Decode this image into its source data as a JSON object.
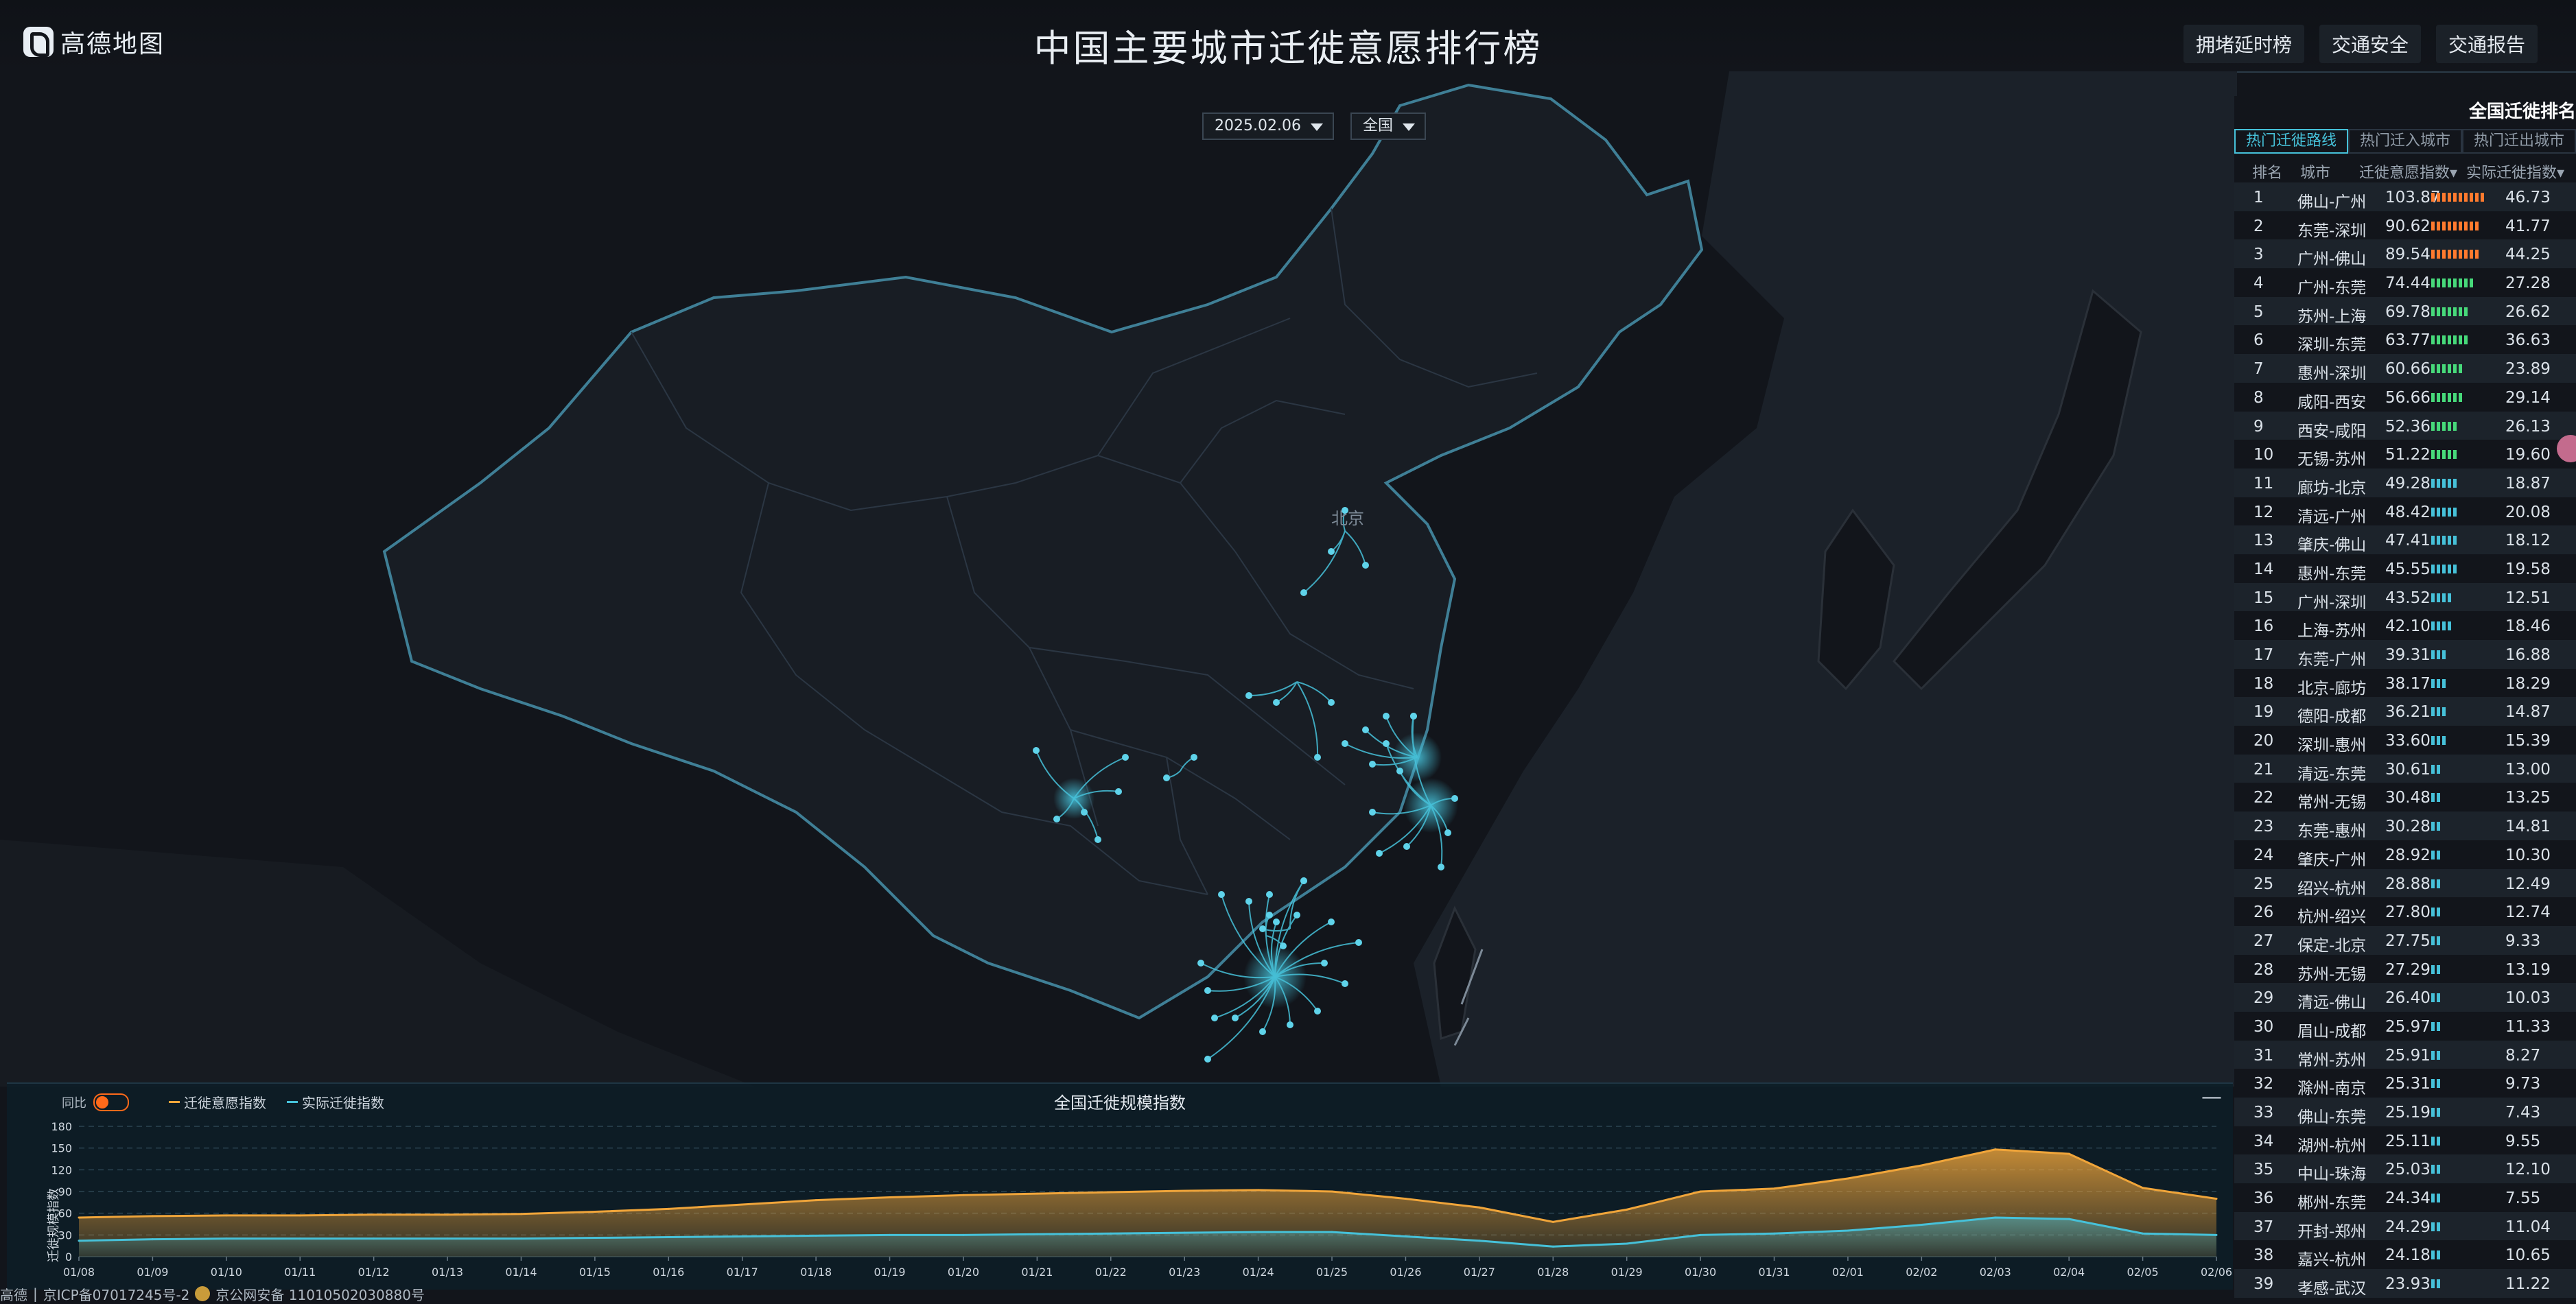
{
  "header": {
    "logo_text": "高德地图",
    "title": "中国主要城市迁徙意愿排行榜",
    "nav": [
      "拥堵延时榜",
      "交通安全",
      "交通报告"
    ]
  },
  "filters": {
    "date": "2025.02.06",
    "region": "全国"
  },
  "map": {
    "label_beijing": "北京"
  },
  "ranking": {
    "title": "全国迁徙排名",
    "tabs": [
      "热门迁徙路线",
      "热门迁入城市",
      "热门迁出城市"
    ],
    "active_tab": 0,
    "headers": {
      "rank": "排名",
      "city": "城市",
      "willingness": "迁徙意愿指数",
      "actual": "实际迁徙指数"
    },
    "rows": [
      {
        "rank": "1",
        "route": "佛山-广州",
        "willingness": "103.87",
        "actual": "46.73",
        "bars": 10,
        "color": "#ff7a2e"
      },
      {
        "rank": "2",
        "route": "东莞-深圳",
        "willingness": "90.62",
        "actual": "41.77",
        "bars": 9,
        "color": "#ff7a2e"
      },
      {
        "rank": "3",
        "route": "广州-佛山",
        "willingness": "89.54",
        "actual": "44.25",
        "bars": 9,
        "color": "#ff7a2e"
      },
      {
        "rank": "4",
        "route": "广州-东莞",
        "willingness": "74.44",
        "actual": "27.28",
        "bars": 8,
        "color": "#47d97a"
      },
      {
        "rank": "5",
        "route": "苏州-上海",
        "willingness": "69.78",
        "actual": "26.62",
        "bars": 7,
        "color": "#47d97a"
      },
      {
        "rank": "6",
        "route": "深圳-东莞",
        "willingness": "63.77",
        "actual": "36.63",
        "bars": 7,
        "color": "#47d97a"
      },
      {
        "rank": "7",
        "route": "惠州-深圳",
        "willingness": "60.66",
        "actual": "23.89",
        "bars": 6,
        "color": "#47d97a"
      },
      {
        "rank": "8",
        "route": "咸阳-西安",
        "willingness": "56.66",
        "actual": "29.14",
        "bars": 6,
        "color": "#47d97a"
      },
      {
        "rank": "9",
        "route": "西安-咸阳",
        "willingness": "52.36",
        "actual": "26.13",
        "bars": 5,
        "color": "#47d97a"
      },
      {
        "rank": "10",
        "route": "无锡-苏州",
        "willingness": "51.22",
        "actual": "19.60",
        "bars": 5,
        "color": "#47d97a"
      },
      {
        "rank": "11",
        "route": "廊坊-北京",
        "willingness": "49.28",
        "actual": "18.87",
        "bars": 5,
        "color": "#46c1d9"
      },
      {
        "rank": "12",
        "route": "清远-广州",
        "willingness": "48.42",
        "actual": "20.08",
        "bars": 5,
        "color": "#46c1d9"
      },
      {
        "rank": "13",
        "route": "肇庆-佛山",
        "willingness": "47.41",
        "actual": "18.12",
        "bars": 5,
        "color": "#46c1d9"
      },
      {
        "rank": "14",
        "route": "惠州-东莞",
        "willingness": "45.55",
        "actual": "19.58",
        "bars": 5,
        "color": "#46c1d9"
      },
      {
        "rank": "15",
        "route": "广州-深圳",
        "willingness": "43.52",
        "actual": "12.51",
        "bars": 4,
        "color": "#46c1d9"
      },
      {
        "rank": "16",
        "route": "上海-苏州",
        "willingness": "42.10",
        "actual": "18.46",
        "bars": 4,
        "color": "#46c1d9"
      },
      {
        "rank": "17",
        "route": "东莞-广州",
        "willingness": "39.31",
        "actual": "16.88",
        "bars": 3,
        "color": "#46c1d9"
      },
      {
        "rank": "18",
        "route": "北京-廊坊",
        "willingness": "38.17",
        "actual": "18.29",
        "bars": 3,
        "color": "#46c1d9"
      },
      {
        "rank": "19",
        "route": "德阳-成都",
        "willingness": "36.21",
        "actual": "14.87",
        "bars": 3,
        "color": "#46c1d9"
      },
      {
        "rank": "20",
        "route": "深圳-惠州",
        "willingness": "33.60",
        "actual": "15.39",
        "bars": 3,
        "color": "#46c1d9"
      },
      {
        "rank": "21",
        "route": "清远-东莞",
        "willingness": "30.61",
        "actual": "13.00",
        "bars": 2,
        "color": "#46c1d9"
      },
      {
        "rank": "22",
        "route": "常州-无锡",
        "willingness": "30.48",
        "actual": "13.25",
        "bars": 2,
        "color": "#46c1d9"
      },
      {
        "rank": "23",
        "route": "东莞-惠州",
        "willingness": "30.28",
        "actual": "14.81",
        "bars": 2,
        "color": "#46c1d9"
      },
      {
        "rank": "24",
        "route": "肇庆-广州",
        "willingness": "28.92",
        "actual": "10.30",
        "bars": 2,
        "color": "#46c1d9"
      },
      {
        "rank": "25",
        "route": "绍兴-杭州",
        "willingness": "28.88",
        "actual": "12.49",
        "bars": 2,
        "color": "#46c1d9"
      },
      {
        "rank": "26",
        "route": "杭州-绍兴",
        "willingness": "27.80",
        "actual": "12.74",
        "bars": 2,
        "color": "#46c1d9"
      },
      {
        "rank": "27",
        "route": "保定-北京",
        "willingness": "27.75",
        "actual": "9.33",
        "bars": 2,
        "color": "#46c1d9"
      },
      {
        "rank": "28",
        "route": "苏州-无锡",
        "willingness": "27.29",
        "actual": "13.19",
        "bars": 2,
        "color": "#46c1d9"
      },
      {
        "rank": "29",
        "route": "清远-佛山",
        "willingness": "26.40",
        "actual": "10.03",
        "bars": 2,
        "color": "#46c1d9"
      },
      {
        "rank": "30",
        "route": "眉山-成都",
        "willingness": "25.97",
        "actual": "11.33",
        "bars": 2,
        "color": "#46c1d9"
      },
      {
        "rank": "31",
        "route": "常州-苏州",
        "willingness": "25.91",
        "actual": "8.27",
        "bars": 2,
        "color": "#46c1d9"
      },
      {
        "rank": "32",
        "route": "滁州-南京",
        "willingness": "25.31",
        "actual": "9.73",
        "bars": 2,
        "color": "#46c1d9"
      },
      {
        "rank": "33",
        "route": "佛山-东莞",
        "willingness": "25.19",
        "actual": "7.43",
        "bars": 2,
        "color": "#46c1d9"
      },
      {
        "rank": "34",
        "route": "湖州-杭州",
        "willingness": "25.11",
        "actual": "9.55",
        "bars": 2,
        "color": "#46c1d9"
      },
      {
        "rank": "35",
        "route": "中山-珠海",
        "willingness": "25.03",
        "actual": "12.10",
        "bars": 2,
        "color": "#46c1d9"
      },
      {
        "rank": "36",
        "route": "郴州-东莞",
        "willingness": "24.34",
        "actual": "7.55",
        "bars": 2,
        "color": "#46c1d9"
      },
      {
        "rank": "37",
        "route": "开封-郑州",
        "willingness": "24.29",
        "actual": "11.04",
        "bars": 2,
        "color": "#46c1d9"
      },
      {
        "rank": "38",
        "route": "嘉兴-杭州",
        "willingness": "24.18",
        "actual": "10.65",
        "bars": 2,
        "color": "#46c1d9"
      },
      {
        "rank": "39",
        "route": "孝感-武汉",
        "willingness": "23.93",
        "actual": "11.22",
        "bars": 2,
        "color": "#46c1d9"
      }
    ]
  },
  "chart_data": {
    "type": "area",
    "title": "全国迁徙规模指数",
    "ylabel": "迁徙规模指数",
    "compare_label": "同比",
    "ylim": [
      0,
      180
    ],
    "yticks": [
      0,
      30,
      60,
      90,
      120,
      150,
      180
    ],
    "grid": true,
    "categories": [
      "01/08",
      "01/09",
      "01/10",
      "01/11",
      "01/12",
      "01/13",
      "01/14",
      "01/15",
      "01/16",
      "01/17",
      "01/18",
      "01/19",
      "01/20",
      "01/21",
      "01/22",
      "01/23",
      "01/24",
      "01/25",
      "01/26",
      "01/27",
      "01/28",
      "01/29",
      "01/30",
      "01/31",
      "02/01",
      "02/02",
      "02/03",
      "02/04",
      "02/05",
      "02/06"
    ],
    "series": [
      {
        "name": "迁徙意愿指数",
        "color": "#f0a53a",
        "values": [
          54,
          56,
          57,
          57,
          58,
          58,
          59,
          62,
          66,
          72,
          78,
          82,
          85,
          87,
          89,
          91,
          92,
          90,
          80,
          68,
          48,
          65,
          90,
          94,
          108,
          126,
          148,
          142,
          95,
          80
        ]
      },
      {
        "name": "实际迁徙指数",
        "color": "#46c1d9",
        "values": [
          22,
          24,
          25,
          25,
          25,
          25,
          25,
          26,
          27,
          28,
          29,
          30,
          30,
          31,
          32,
          33,
          34,
          34,
          28,
          22,
          14,
          18,
          30,
          32,
          36,
          44,
          54,
          52,
          32,
          30
        ]
      }
    ]
  },
  "footer": {
    "icp": "京ICP备07017245号-2",
    "police": "京公网安备 11010502030880号",
    "prefix": "高德"
  }
}
